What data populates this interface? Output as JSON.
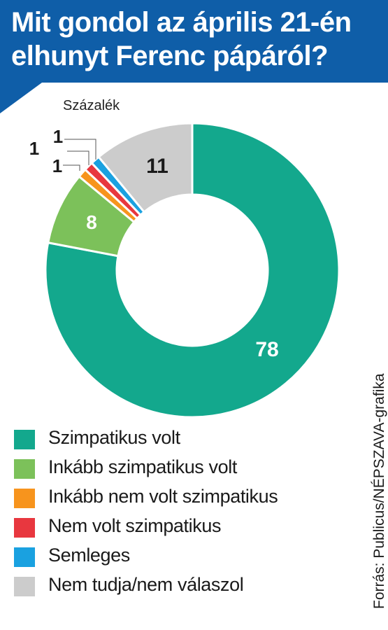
{
  "chart_data": {
    "type": "pie",
    "title": "Mit gondol az április 21-én elhunyt Ferenc pápáról?",
    "title_lines": [
      "Mit gondol az április 21-én",
      "elhunyt Ferenc pápáról?"
    ],
    "subtitle": "Százalék",
    "categories": [
      "Szimpatikus volt",
      "Inkább szimpatikus volt",
      "Inkább nem volt szimpatikus",
      "Nem volt szimpatikus",
      "Semleges",
      "Nem tudja/nem válaszol"
    ],
    "values": [
      78,
      8,
      1,
      1,
      1,
      11
    ],
    "colors": [
      "#13a88d",
      "#7cc15a",
      "#f7941d",
      "#e8373f",
      "#1aa1e0",
      "#cccccc"
    ],
    "legend": "bottom"
  },
  "source": "Forrás: Publicus/NÉPSZAVA-grafika"
}
